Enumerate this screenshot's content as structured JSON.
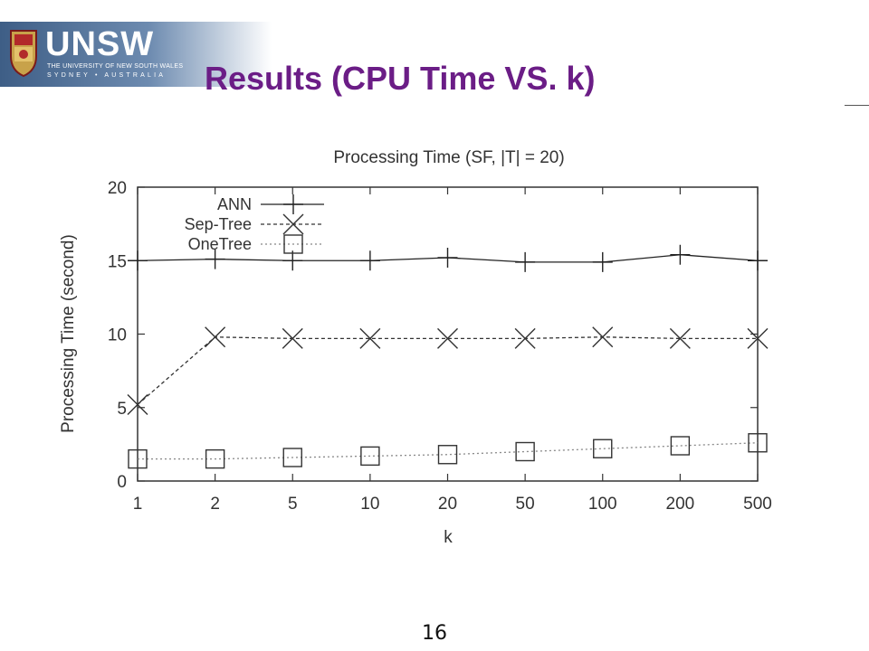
{
  "logo": {
    "wordmark": "UNSW",
    "line1": "THE UNIVERSITY OF NEW SOUTH WALES",
    "line2": "SYDNEY • AUSTRALIA"
  },
  "slide": {
    "title": "Results (CPU Time VS. k)",
    "page_number": "16"
  },
  "colors": {
    "title": "#6b1d86",
    "header_band": "#3e5e86"
  },
  "chart_data": {
    "type": "line",
    "title": "Processing Time (SF, |T| = 20)",
    "xlabel": "k",
    "ylabel": "Processing Time (second)",
    "categories": [
      "1",
      "2",
      "5",
      "10",
      "20",
      "50",
      "100",
      "200",
      "500"
    ],
    "ylim": [
      0,
      20
    ],
    "yticks": [
      0,
      5,
      10,
      15,
      20
    ],
    "grid": false,
    "legend_position": "top-left",
    "series": [
      {
        "name": "ANN",
        "marker": "plus",
        "line": "solid",
        "color": "#222222",
        "values": [
          15.0,
          15.1,
          15.0,
          15.0,
          15.2,
          14.9,
          14.9,
          15.4,
          15.0
        ]
      },
      {
        "name": "Sep-Tree",
        "marker": "x",
        "line": "dashed",
        "color": "#333333",
        "values": [
          5.2,
          9.8,
          9.7,
          9.7,
          9.7,
          9.7,
          9.8,
          9.7,
          9.7
        ]
      },
      {
        "name": "OneTree",
        "marker": "square",
        "line": "dotted",
        "color": "#888888",
        "values": [
          1.5,
          1.5,
          1.6,
          1.7,
          1.8,
          2.0,
          2.2,
          2.4,
          2.6
        ]
      }
    ]
  }
}
